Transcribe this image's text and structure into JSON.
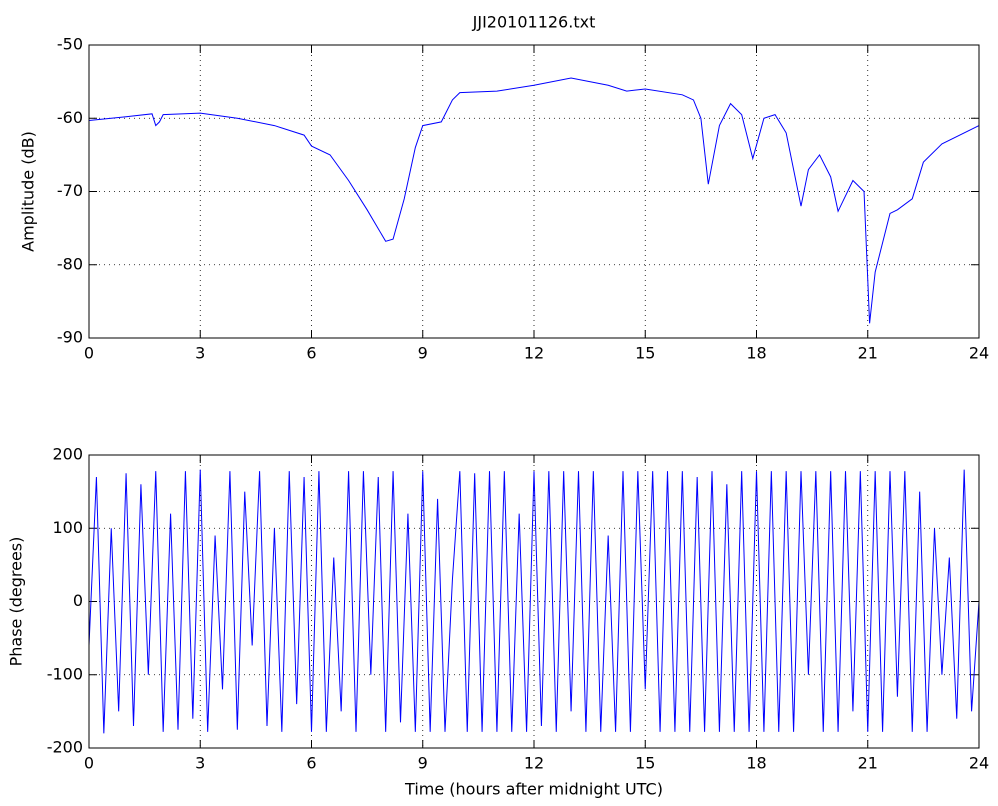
{
  "chart_data": [
    {
      "type": "line",
      "title": "JJI20101126.txt",
      "ylabel": "Amplitude (dB)",
      "x": [
        0,
        1,
        1.7,
        1.8,
        1.9,
        2,
        3,
        4,
        5,
        5.8,
        6,
        6.5,
        7,
        7.5,
        8,
        8.2,
        8.5,
        8.8,
        9,
        9.5,
        9.8,
        10,
        11,
        12,
        13,
        14,
        14.5,
        15,
        16,
        16.3,
        16.5,
        16.7,
        17,
        17.3,
        17.6,
        17.9,
        18.2,
        18.5,
        18.8,
        19.2,
        19.4,
        19.7,
        20,
        20.2,
        20.6,
        20.9,
        21.05,
        21.2,
        21.6,
        21.8,
        22.2,
        22.5,
        23,
        24
      ],
      "values": [
        -60.3,
        -59.8,
        -59.4,
        -61,
        -60.5,
        -59.5,
        -59.3,
        -60,
        -61,
        -62.3,
        -63.8,
        -65,
        -68.5,
        -72.5,
        -76.8,
        -76.5,
        -71,
        -64,
        -61,
        -60.5,
        -57.5,
        -56.5,
        -56.3,
        -55.5,
        -54.5,
        -55.5,
        -56.3,
        -56,
        -56.8,
        -57.5,
        -60,
        -69,
        -61,
        -58,
        -59.5,
        -65.5,
        -60,
        -59.5,
        -62,
        -72,
        -67,
        -65,
        -68,
        -72.7,
        -68.5,
        -70,
        -88,
        -81,
        -73,
        -72.5,
        -71,
        -66,
        -63.5,
        -61
      ],
      "color": "#0000ff",
      "xlim": [
        0,
        24
      ],
      "xticks": [
        0,
        3,
        6,
        9,
        12,
        15,
        18,
        21,
        24
      ],
      "ylim": [
        -90,
        -50
      ],
      "yticks": [
        -90,
        -80,
        -70,
        -60,
        -50
      ],
      "grid": true
    },
    {
      "type": "line",
      "ylabel": "Phase (degrees)",
      "xlabel": "Time (hours after midnight UTC)",
      "x": [
        0,
        0.2,
        0.4,
        0.6,
        0.8,
        1,
        1.2,
        1.4,
        1.6,
        1.8,
        2,
        2.2,
        2.4,
        2.6,
        2.8,
        3,
        3.2,
        3.4,
        3.6,
        3.8,
        4,
        4.2,
        4.4,
        4.6,
        4.8,
        5,
        5.2,
        5.4,
        5.6,
        5.8,
        6,
        6.2,
        6.4,
        6.6,
        6.8,
        7,
        7.2,
        7.4,
        7.6,
        7.8,
        8,
        8.2,
        8.4,
        8.6,
        8.8,
        9,
        9.2,
        9.4,
        9.6,
        9.8,
        10,
        10.2,
        10.4,
        10.6,
        10.8,
        11,
        11.2,
        11.4,
        11.6,
        11.8,
        12,
        12.2,
        12.4,
        12.6,
        12.8,
        13,
        13.2,
        13.4,
        13.6,
        13.8,
        14,
        14.2,
        14.4,
        14.6,
        14.8,
        15,
        15.2,
        15.4,
        15.6,
        15.8,
        16,
        16.2,
        16.4,
        16.6,
        16.8,
        17,
        17.2,
        17.4,
        17.6,
        17.8,
        18,
        18.2,
        18.4,
        18.6,
        18.8,
        19,
        19.2,
        19.4,
        19.6,
        19.8,
        20,
        20.2,
        20.4,
        20.6,
        20.8,
        21,
        21.2,
        21.4,
        21.6,
        21.8,
        22,
        22.2,
        22.4,
        22.6,
        22.8,
        23,
        23.2,
        23.4,
        23.6,
        23.8,
        24
      ],
      "values": [
        -60,
        170,
        -180,
        100,
        -150,
        175,
        -170,
        160,
        -100,
        178,
        -178,
        120,
        -175,
        178,
        -160,
        180,
        -178,
        90,
        -120,
        178,
        -175,
        150,
        -60,
        178,
        -170,
        100,
        -178,
        178,
        -140,
        170,
        -178,
        178,
        -178,
        60,
        -150,
        178,
        -178,
        178,
        -100,
        170,
        -178,
        178,
        -165,
        120,
        -178,
        178,
        -178,
        140,
        -178,
        30,
        178,
        -178,
        175,
        -178,
        178,
        -178,
        178,
        -178,
        120,
        -178,
        178,
        -170,
        178,
        -178,
        178,
        -150,
        178,
        -178,
        178,
        -178,
        90,
        -178,
        178,
        -178,
        178,
        -120,
        178,
        -178,
        178,
        -178,
        178,
        -178,
        170,
        -178,
        178,
        -178,
        160,
        -178,
        178,
        -178,
        178,
        -178,
        178,
        -178,
        178,
        -178,
        178,
        -100,
        178,
        -178,
        178,
        -178,
        178,
        -150,
        178,
        -178,
        178,
        -178,
        178,
        -130,
        178,
        -178,
        150,
        -178,
        100,
        -100,
        60,
        -160,
        180,
        -150,
        0
      ],
      "color": "#0000ff",
      "xlim": [
        0,
        24
      ],
      "xticks": [
        0,
        3,
        6,
        9,
        12,
        15,
        18,
        21,
        24
      ],
      "ylim": [
        -200,
        200
      ],
      "yticks": [
        -200,
        -100,
        0,
        100,
        200
      ],
      "grid": true
    }
  ]
}
